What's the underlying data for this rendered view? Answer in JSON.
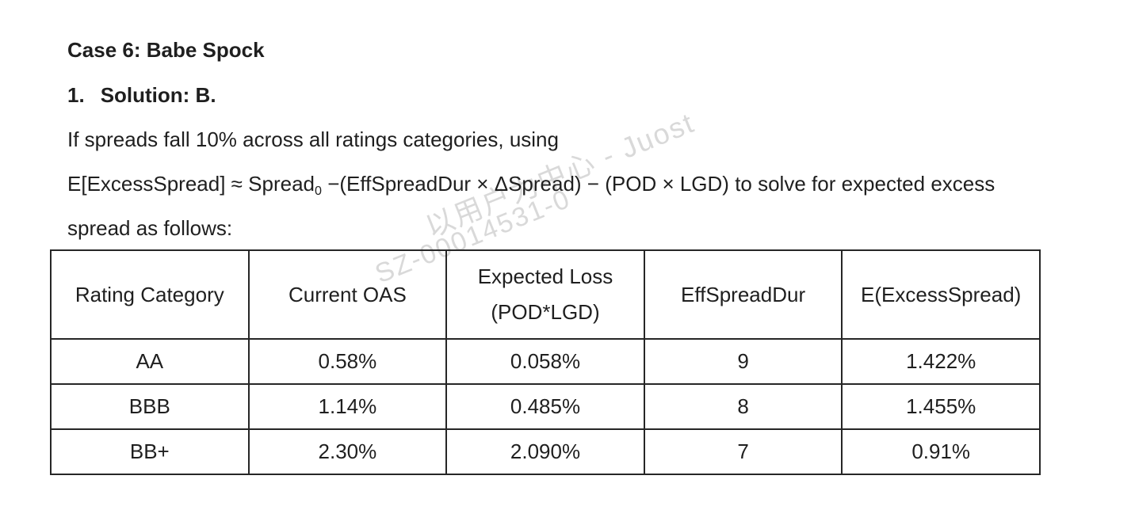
{
  "heading": "Case 6: Babe Spock",
  "solution": {
    "number": "1.",
    "text": "Solution: B."
  },
  "paragraph": {
    "line1": "If spreads fall 10% across all ratings categories, using",
    "formula_pre": "E[ExcessSpread] ≈ Spread",
    "formula_sub": "0",
    "formula_post": " −(EffSpreadDur × ΔSpread) − (POD × LGD) to solve for expected excess",
    "line3": "spread as follows:"
  },
  "watermark": {
    "line1": "以用户为中心 - Juost",
    "line2": "SZ-00014531-0",
    "color": "#d9d9d9"
  },
  "table": {
    "headers": {
      "rating": "Rating Category",
      "oas": "Current OAS",
      "loss_line1": "Expected Loss",
      "loss_line2": "(POD*LGD)",
      "dur": "EffSpreadDur",
      "excess": "E(ExcessSpread)"
    },
    "rows": [
      {
        "rating": "AA",
        "oas": "0.58%",
        "loss": "0.058%",
        "dur": "9",
        "excess": "1.422%"
      },
      {
        "rating": "BBB",
        "oas": "1.14%",
        "loss": "0.485%",
        "dur": "8",
        "excess": "1.455%"
      },
      {
        "rating": "BB+",
        "oas": "2.30%",
        "loss": "2.090%",
        "dur": "7",
        "excess": "0.91%"
      }
    ]
  },
  "colors": {
    "text": "#1f1f1f",
    "table_border": "#262626",
    "background": "#ffffff"
  }
}
